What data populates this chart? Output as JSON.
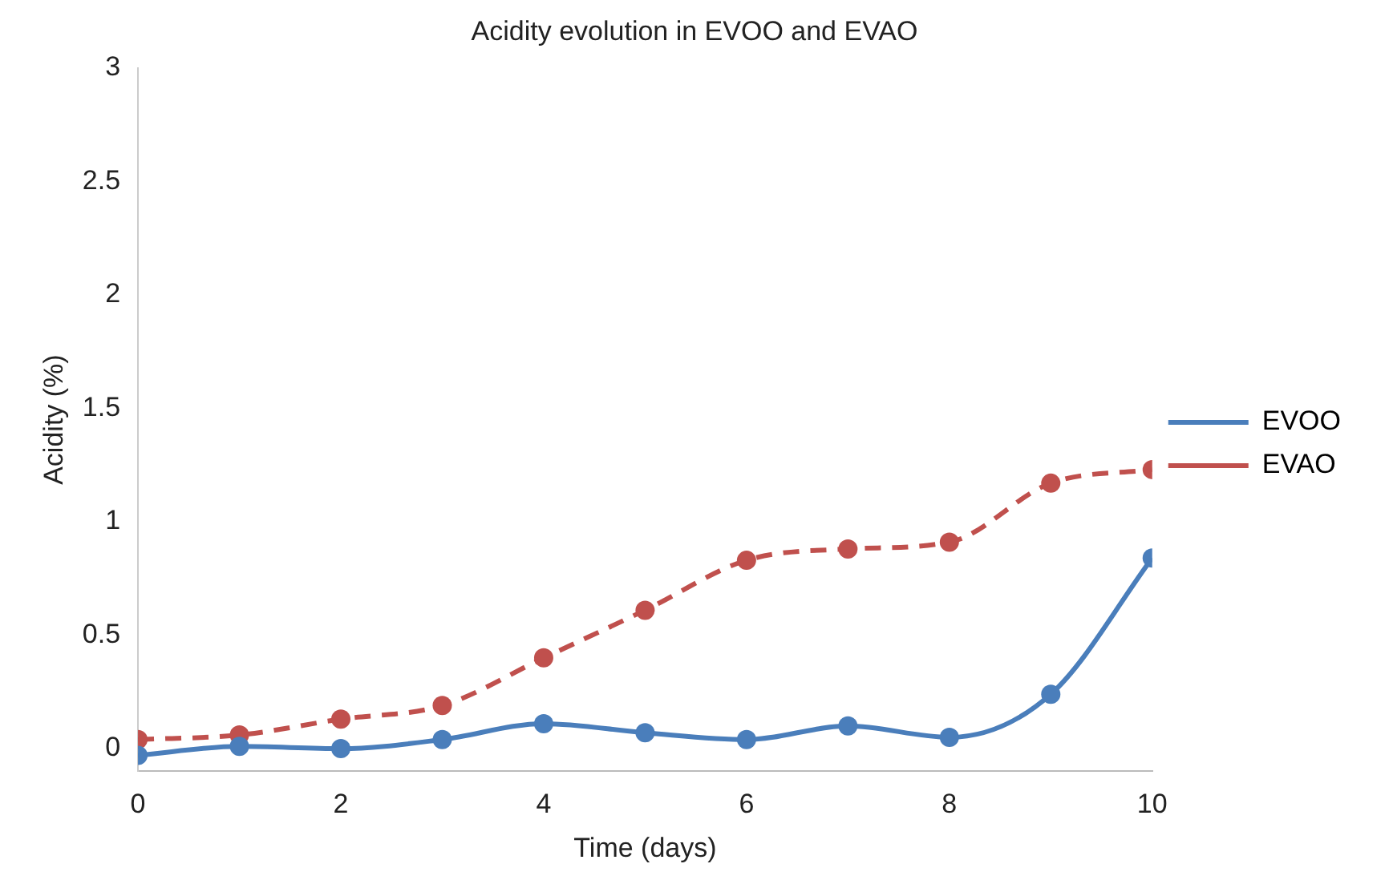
{
  "chart_data": {
    "type": "line",
    "title": "Acidity evolution in EVOO and EVAO",
    "xlabel": "Time (days)",
    "ylabel": "Acidity (%)",
    "x": [
      0,
      1,
      2,
      3,
      4,
      5,
      6,
      7,
      8,
      9,
      10
    ],
    "series": [
      {
        "name": "EVOO",
        "color": "#4a7ebb",
        "line_style": "solid",
        "values": [
          -0.03,
          0.01,
          0,
          0.04,
          0.11,
          0.07,
          0.04,
          0.1,
          0.05,
          0.24,
          0.84
        ]
      },
      {
        "name": "EVAO",
        "color": "#c0504d",
        "line_style": "dashed",
        "values": [
          0.04,
          0.06,
          0.13,
          0.19,
          0.4,
          0.61,
          0.83,
          0.88,
          0.91,
          1.17,
          1.23
        ]
      }
    ],
    "xlim": [
      0,
      10
    ],
    "xticks": [
      0,
      2,
      4,
      6,
      8,
      10
    ],
    "ylim": [
      -0.1,
      3
    ],
    "yticks": [
      0,
      0.5,
      1,
      1.5,
      2,
      2.5,
      3
    ],
    "marker": "circle",
    "grid": false,
    "legend": "right"
  }
}
